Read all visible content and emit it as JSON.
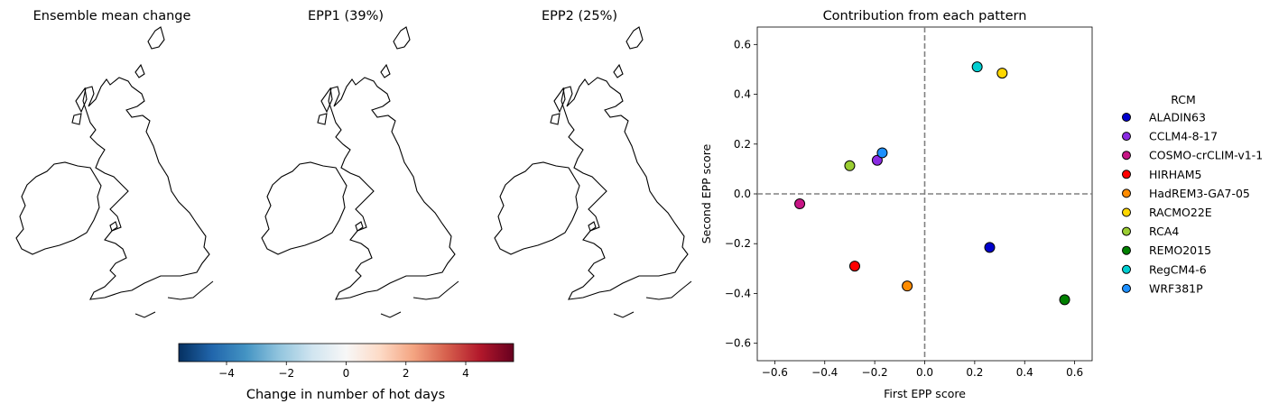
{
  "chart_data": [
    {
      "type": "map",
      "title": "Ensemble mean change",
      "pattern": "mean"
    },
    {
      "type": "map",
      "title": "EPP1 (39%)",
      "pattern": "epp1"
    },
    {
      "type": "map",
      "title": "EPP2 (25%)",
      "pattern": "epp2"
    },
    {
      "type": "colorbar",
      "label": "Change in number of hot days",
      "colormap": "RdBu_r",
      "range": [
        -5.6,
        5.6
      ],
      "ticks": [
        -4,
        -2,
        0,
        2,
        4
      ],
      "tick_labels": [
        "−4",
        "−2",
        "0",
        "2",
        "4"
      ]
    },
    {
      "type": "scatter",
      "title": "Contribution from each pattern",
      "xlabel": "First EPP score",
      "ylabel": "Second EPP score",
      "xlim": [
        -0.67,
        0.67
      ],
      "ylim": [
        -0.67,
        0.67
      ],
      "xticks": [
        -0.6,
        -0.4,
        -0.2,
        0.0,
        0.2,
        0.4,
        0.6
      ],
      "yticks": [
        -0.6,
        -0.4,
        -0.2,
        0.0,
        0.2,
        0.4,
        0.6
      ],
      "xtick_labels": [
        "−0.6",
        "−0.4",
        "−0.2",
        "0.0",
        "0.2",
        "0.4",
        "0.6"
      ],
      "ytick_labels": [
        "−0.6",
        "−0.4",
        "−0.2",
        "0.0",
        "0.2",
        "0.4",
        "0.6"
      ],
      "reference_lines": {
        "x": 0,
        "y": 0,
        "style": "dashed",
        "color": "#808080"
      },
      "legend_title": "RCM",
      "legend_placement": "right, outside",
      "series": [
        {
          "name": "ALADIN63",
          "color": "#0000cd",
          "x": 0.26,
          "y": -0.215
        },
        {
          "name": "CCLM4-8-17",
          "color": "#8a2be2",
          "x": -0.19,
          "y": 0.135
        },
        {
          "name": "COSMO-crCLIM-v1-1",
          "color": "#c71585",
          "x": -0.5,
          "y": -0.04
        },
        {
          "name": "HIRHAM5",
          "color": "#ff0000",
          "x": -0.28,
          "y": -0.29
        },
        {
          "name": "HadREM3-GA7-05",
          "color": "#ff8c00",
          "x": -0.07,
          "y": -0.37
        },
        {
          "name": "RACMO22E",
          "color": "#ffd700",
          "x": 0.31,
          "y": 0.485
        },
        {
          "name": "RCA4",
          "color": "#9acd32",
          "x": -0.3,
          "y": 0.113
        },
        {
          "name": "REMO2015",
          "color": "#008000",
          "x": 0.56,
          "y": -0.425
        },
        {
          "name": "RegCM4-6",
          "color": "#00ced1",
          "x": 0.21,
          "y": 0.51
        },
        {
          "name": "WRF381P",
          "color": "#1e90ff",
          "x": -0.17,
          "y": 0.165
        }
      ]
    }
  ]
}
